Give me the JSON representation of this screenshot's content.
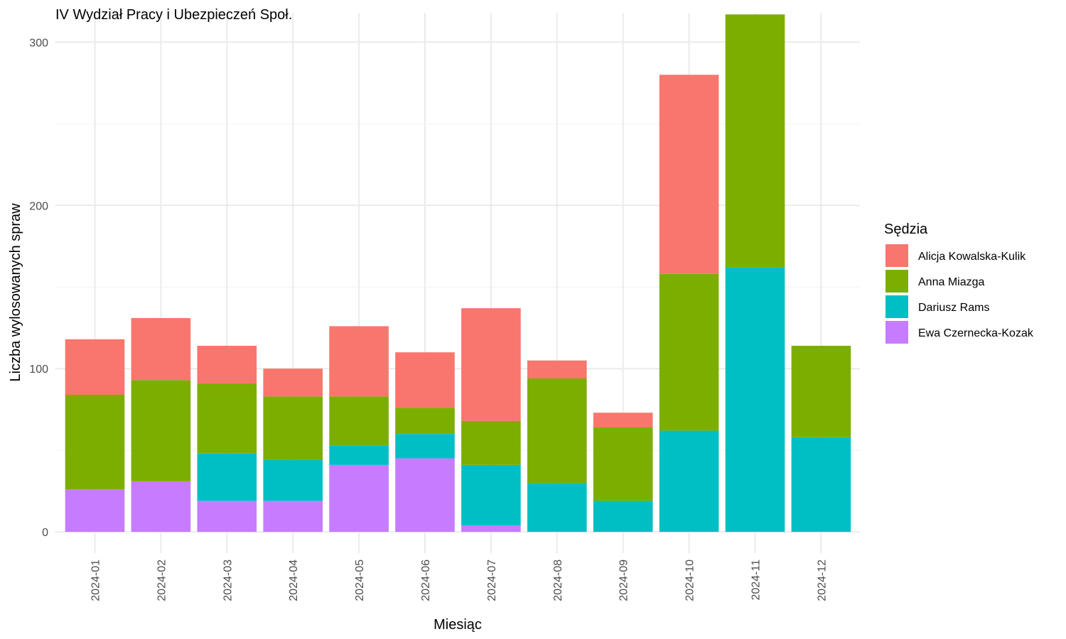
{
  "chart_data": {
    "type": "bar",
    "stacked": true,
    "title": "IV Wydział Pracy i Ubezpieczeń Społ.",
    "xlabel": "Miesiąc",
    "ylabel": "Liczba wylosowanych spraw",
    "ylim": [
      -13,
      318
    ],
    "yticks": [
      0,
      100,
      200,
      300
    ],
    "grid": true,
    "legend_title": "Sędzia",
    "legend_position": "right",
    "categories": [
      "2024-01",
      "2024-02",
      "2024-03",
      "2024-04",
      "2024-05",
      "2024-06",
      "2024-07",
      "2024-08",
      "2024-09",
      "2024-10",
      "2024-11",
      "2024-12"
    ],
    "series": [
      {
        "name": "Ewa Czernecka-Kozak",
        "color": "#C77CFF",
        "values": [
          26,
          31,
          19,
          19,
          41,
          45,
          4,
          0,
          0,
          0,
          0,
          0
        ]
      },
      {
        "name": "Dariusz Rams",
        "color": "#00BFC4",
        "values": [
          0,
          0,
          29,
          25,
          12,
          15,
          37,
          30,
          19,
          62,
          162,
          58
        ]
      },
      {
        "name": "Anna Miazga",
        "color": "#7CAE00",
        "values": [
          58,
          62,
          43,
          39,
          30,
          16,
          27,
          64,
          45,
          96,
          155,
          56
        ]
      },
      {
        "name": "Alicja Kowalska-Kulik",
        "color": "#F8766D",
        "values": [
          34,
          38,
          23,
          17,
          43,
          34,
          69,
          11,
          9,
          122,
          0,
          0
        ]
      }
    ],
    "legend_order": [
      "Alicja Kowalska-Kulik",
      "Anna Miazga",
      "Dariusz Rams",
      "Ewa Czernecka-Kozak"
    ]
  }
}
